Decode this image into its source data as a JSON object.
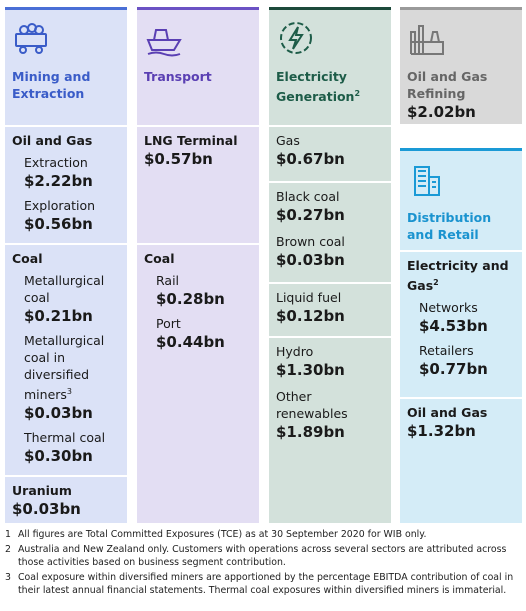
{
  "columns": [
    {
      "title": "Mining and Extraction",
      "sections": [
        {
          "title": "Oil and Gas",
          "items": [
            {
              "label": "Extraction",
              "value": "$2.22bn"
            },
            {
              "label": "Exploration",
              "value": "$0.56bn"
            }
          ]
        },
        {
          "title": "Coal",
          "items": [
            {
              "label": "Metallurgical coal",
              "value": "$0.21bn"
            },
            {
              "label": "Metallurgical coal in diversified miners",
              "note": "3",
              "value": "$0.03bn"
            },
            {
              "label": "Thermal coal",
              "value": "$0.30bn"
            }
          ]
        },
        {
          "title": "Uranium",
          "value": "$0.03bn"
        }
      ]
    },
    {
      "title": "Transport",
      "sections": [
        {
          "title": "LNG Terminal",
          "value": "$0.57bn"
        },
        {
          "title": "Coal",
          "items": [
            {
              "label": "Rail",
              "value": "$0.28bn"
            },
            {
              "label": "Port",
              "value": "$0.44bn"
            }
          ]
        }
      ]
    },
    {
      "title": "Electricity Generation",
      "note": "2",
      "sections": [
        {
          "items": [
            {
              "label": "Gas",
              "value": "$0.67bn"
            }
          ]
        },
        {
          "items": [
            {
              "label": "Black coal",
              "value": "$0.27bn"
            },
            {
              "label": "Brown coal",
              "value": "$0.03bn"
            }
          ]
        },
        {
          "items": [
            {
              "label": "Liquid fuel",
              "value": "$0.12bn"
            }
          ]
        },
        {
          "items": [
            {
              "label": "Hydro",
              "value": "$1.30bn"
            },
            {
              "label": "Other renewables",
              "value": "$1.89bn"
            }
          ]
        }
      ]
    }
  ],
  "refining": {
    "title": "Oil and Gas Refining",
    "value": "$2.02bn"
  },
  "distribution": {
    "title": "Distribution and Retail",
    "sections": [
      {
        "title": "Electricity and Gas",
        "note": "2",
        "items": [
          {
            "label": "Networks",
            "value": "$4.53bn"
          },
          {
            "label": "Retailers",
            "value": "$0.77bn"
          }
        ]
      },
      {
        "title": "Oil and Gas",
        "value": "$1.32bn"
      }
    ]
  },
  "footnotes": [
    {
      "number": "1",
      "text": "All figures are Total Committed Exposures (TCE) as at 30 September 2020 for WIB only."
    },
    {
      "number": "2",
      "text": "Australia and New Zealand only. Customers with operations across several sectors are attributed across those activities based on business segment contribution."
    },
    {
      "number": "3",
      "text": "Coal exposure within diversified miners are apportioned by the percentage EBITDA contribution of coal in their latest annual financial statements. Thermal coal exposures within diversified miners is immaterial."
    }
  ]
}
